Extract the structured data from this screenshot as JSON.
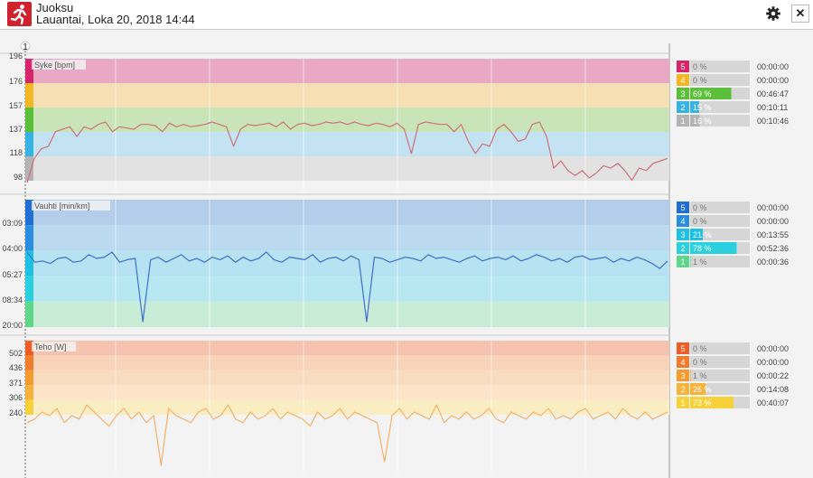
{
  "header": {
    "title": "Juoksu",
    "subtitle": "Lauantai, Loka 20, 2018 14:44",
    "settings_icon": "gear-icon",
    "close_icon": "close-icon",
    "close_label": "✕"
  },
  "marker_label": "1",
  "chart_data": [
    {
      "type": "line",
      "id": "hr",
      "title": "Syke [bpm]",
      "ylabels": [
        "196",
        "176",
        "157",
        "137",
        "118",
        "98"
      ],
      "line_color": "#d0707a",
      "zones": [
        {
          "zone": "5",
          "color": "#e9a8c3",
          "strip": "#d8256a",
          "percent": "0 %",
          "time": "00:00:00",
          "fraction": 0
        },
        {
          "zone": "4",
          "color": "#f6dfb3",
          "strip": "#f4b724",
          "percent": "0 %",
          "time": "00:00:00",
          "fraction": 0
        },
        {
          "zone": "3",
          "color": "#c9e5b8",
          "strip": "#5cbf3a",
          "percent": "69 %",
          "time": "00:46:47",
          "fraction": 0.69
        },
        {
          "zone": "2",
          "color": "#c3e3f2",
          "strip": "#36b2e3",
          "percent": "15 %",
          "time": "00:10:11",
          "fraction": 0.15
        },
        {
          "zone": "1",
          "color": "#e2e2e2",
          "strip": "#b3b3b3",
          "percent": "16 %",
          "time": "00:10:46",
          "fraction": 0.16
        }
      ],
      "series": [
        {
          "values": [
            98,
            118,
            126,
            128,
            140,
            142,
            144,
            136,
            144,
            142,
            146,
            148,
            140,
            144,
            143,
            142,
            146,
            146,
            145,
            140,
            147,
            144,
            146,
            144,
            145,
            146,
            148,
            146,
            144,
            128,
            142,
            146,
            145,
            146,
            147,
            144,
            148,
            142,
            146,
            147,
            145,
            146,
            148,
            147,
            148,
            146,
            148,
            146,
            145,
            147,
            146,
            144,
            147,
            142,
            122,
            146,
            148,
            147,
            146,
            146,
            140,
            146,
            132,
            122,
            130,
            128,
            142,
            146,
            140,
            132,
            134,
            146,
            148,
            136,
            110,
            116,
            108,
            104,
            108,
            102,
            106,
            112,
            110,
            114,
            108,
            100,
            110,
            108,
            114,
            116,
            118
          ]
        }
      ]
    },
    {
      "type": "line",
      "id": "pace",
      "title": "Vauhti [min/km]",
      "ylabels": [
        "03:09",
        "04:00",
        "05:27",
        "08:34",
        "20:00"
      ],
      "line_color": "#3f6fcf",
      "zones": [
        {
          "zone": "5",
          "color": "#b3cdeb",
          "strip": "#1f6fd4",
          "percent": "0 %",
          "time": "00:00:00",
          "fraction": 0
        },
        {
          "zone": "4",
          "color": "#bcdaef",
          "strip": "#2a8ee0",
          "percent": "0 %",
          "time": "00:00:00",
          "fraction": 0
        },
        {
          "zone": "3",
          "color": "#b6e2f2",
          "strip": "#1fc0e6",
          "percent": "21 %",
          "time": "00:13:55",
          "fraction": 0.21
        },
        {
          "zone": "2",
          "color": "#b7e8f1",
          "strip": "#2bd0de",
          "percent": "78 %",
          "time": "00:52:36",
          "fraction": 0.78
        },
        {
          "zone": "1",
          "color": "#c9ecd6",
          "strip": "#5fd68a",
          "percent": "1 %",
          "time": "00:00:36",
          "fraction": 0.01
        }
      ],
      "series": [
        {
          "values": [
            0.6,
            0.52,
            0.53,
            0.51,
            0.55,
            0.56,
            0.52,
            0.53,
            0.58,
            0.55,
            0.56,
            0.6,
            0.52,
            0.54,
            0.55,
            0.05,
            0.54,
            0.56,
            0.52,
            0.55,
            0.58,
            0.53,
            0.55,
            0.52,
            0.56,
            0.54,
            0.57,
            0.52,
            0.56,
            0.53,
            0.55,
            0.6,
            0.54,
            0.52,
            0.56,
            0.55,
            0.54,
            0.58,
            0.52,
            0.55,
            0.56,
            0.53,
            0.57,
            0.54,
            0.05,
            0.56,
            0.55,
            0.52,
            0.54,
            0.56,
            0.55,
            0.53,
            0.58,
            0.55,
            0.56,
            0.54,
            0.52,
            0.55,
            0.57,
            0.53,
            0.55,
            0.56,
            0.54,
            0.57,
            0.53,
            0.55,
            0.58,
            0.56,
            0.53,
            0.55,
            0.52,
            0.56,
            0.57,
            0.54,
            0.55,
            0.56,
            0.52,
            0.55,
            0.53,
            0.56,
            0.54,
            0.51,
            0.47,
            0.53
          ]
        }
      ]
    },
    {
      "type": "line",
      "id": "power",
      "title": "Teho [W]",
      "ylabels": [
        "502",
        "436",
        "371",
        "306",
        "240"
      ],
      "line_color": "#f6b26b",
      "zones": [
        {
          "zone": "5",
          "color": "#f5c3b0",
          "strip": "#ef5c24",
          "percent": "0 %",
          "time": "00:00:00",
          "fraction": 0
        },
        {
          "zone": "4",
          "color": "#f8d3b8",
          "strip": "#f27a2b",
          "percent": "0 %",
          "time": "00:00:00",
          "fraction": 0
        },
        {
          "zone": "3",
          "color": "#f9dcc0",
          "strip": "#f59a2e",
          "percent": "1 %",
          "time": "00:00:22",
          "fraction": 0.01
        },
        {
          "zone": "2",
          "color": "#fbe4c7",
          "strip": "#f6b23a",
          "percent": "26 %",
          "time": "00:14:08",
          "fraction": 0.26
        },
        {
          "zone": "1",
          "color": "#fbedc2",
          "strip": "#f6d13a",
          "percent": "73 %",
          "time": "00:40:07",
          "fraction": 0.73
        }
      ],
      "series": [
        {
          "values": [
            290,
            300,
            320,
            310,
            330,
            290,
            310,
            300,
            340,
            320,
            300,
            280,
            310,
            330,
            300,
            320,
            290,
            310,
            170,
            330,
            310,
            300,
            290,
            320,
            330,
            300,
            310,
            340,
            300,
            290,
            320,
            300,
            310,
            330,
            300,
            320,
            310,
            300,
            280,
            320,
            300,
            310,
            330,
            300,
            320,
            310,
            300,
            290,
            180,
            310,
            330,
            300,
            320,
            310,
            300,
            340,
            290,
            310,
            300,
            320,
            300,
            310,
            330,
            300,
            290,
            320,
            310,
            300,
            320,
            310,
            330,
            300,
            310,
            300,
            320,
            330,
            300,
            310,
            320,
            300,
            330,
            310,
            300,
            320,
            300,
            310,
            320
          ]
        }
      ]
    }
  ]
}
